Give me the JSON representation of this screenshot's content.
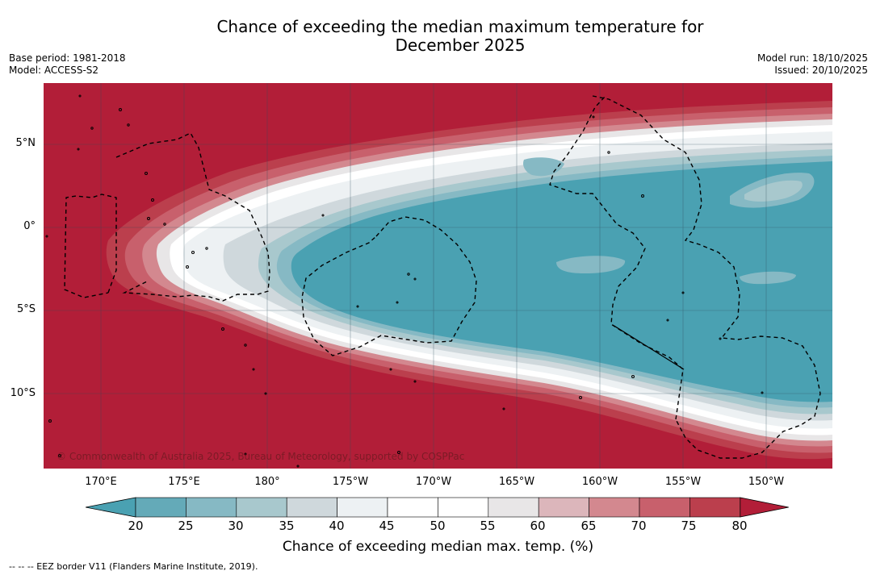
{
  "title_line1": "Chance of exceeding the median maximum temperature for",
  "title_line2": "December 2025",
  "meta": {
    "base_period": "Base period: 1981-2018",
    "model": "Model: ACCESS-S2",
    "model_run": "Model run: 18/10/2025",
    "issued": "Issued: 20/10/2025"
  },
  "lat_labels": [
    "5°N",
    "0°",
    "5°S",
    "10°S"
  ],
  "lon_labels": [
    "170°E",
    "175°E",
    "180°",
    "175°W",
    "170°W",
    "165°W",
    "160°W",
    "155°W",
    "150°W"
  ],
  "copyright": "© Commonwealth of Australia 2025, Bureau of Meteorology, supported by COSPPac",
  "colorbar": {
    "ticks": [
      "20",
      "25",
      "30",
      "35",
      "40",
      "45",
      "50",
      "55",
      "60",
      "65",
      "70",
      "75",
      "80"
    ],
    "colors": [
      "#4aa1b2",
      "#64aab8",
      "#86b9c4",
      "#a8c8cd",
      "#cfd8dc",
      "#edf1f3",
      "#ffffff",
      "#ffffff",
      "#e8e6e7",
      "#dcb6bb",
      "#d3888f",
      "#c8606c",
      "#bb3f4d",
      "#b21e38"
    ],
    "label": "Chance of exceeding median max. temp. (%)"
  },
  "legend_eez": "--  --  -- EEZ border V11 (Flanders Marine Institute, 2019)."
}
